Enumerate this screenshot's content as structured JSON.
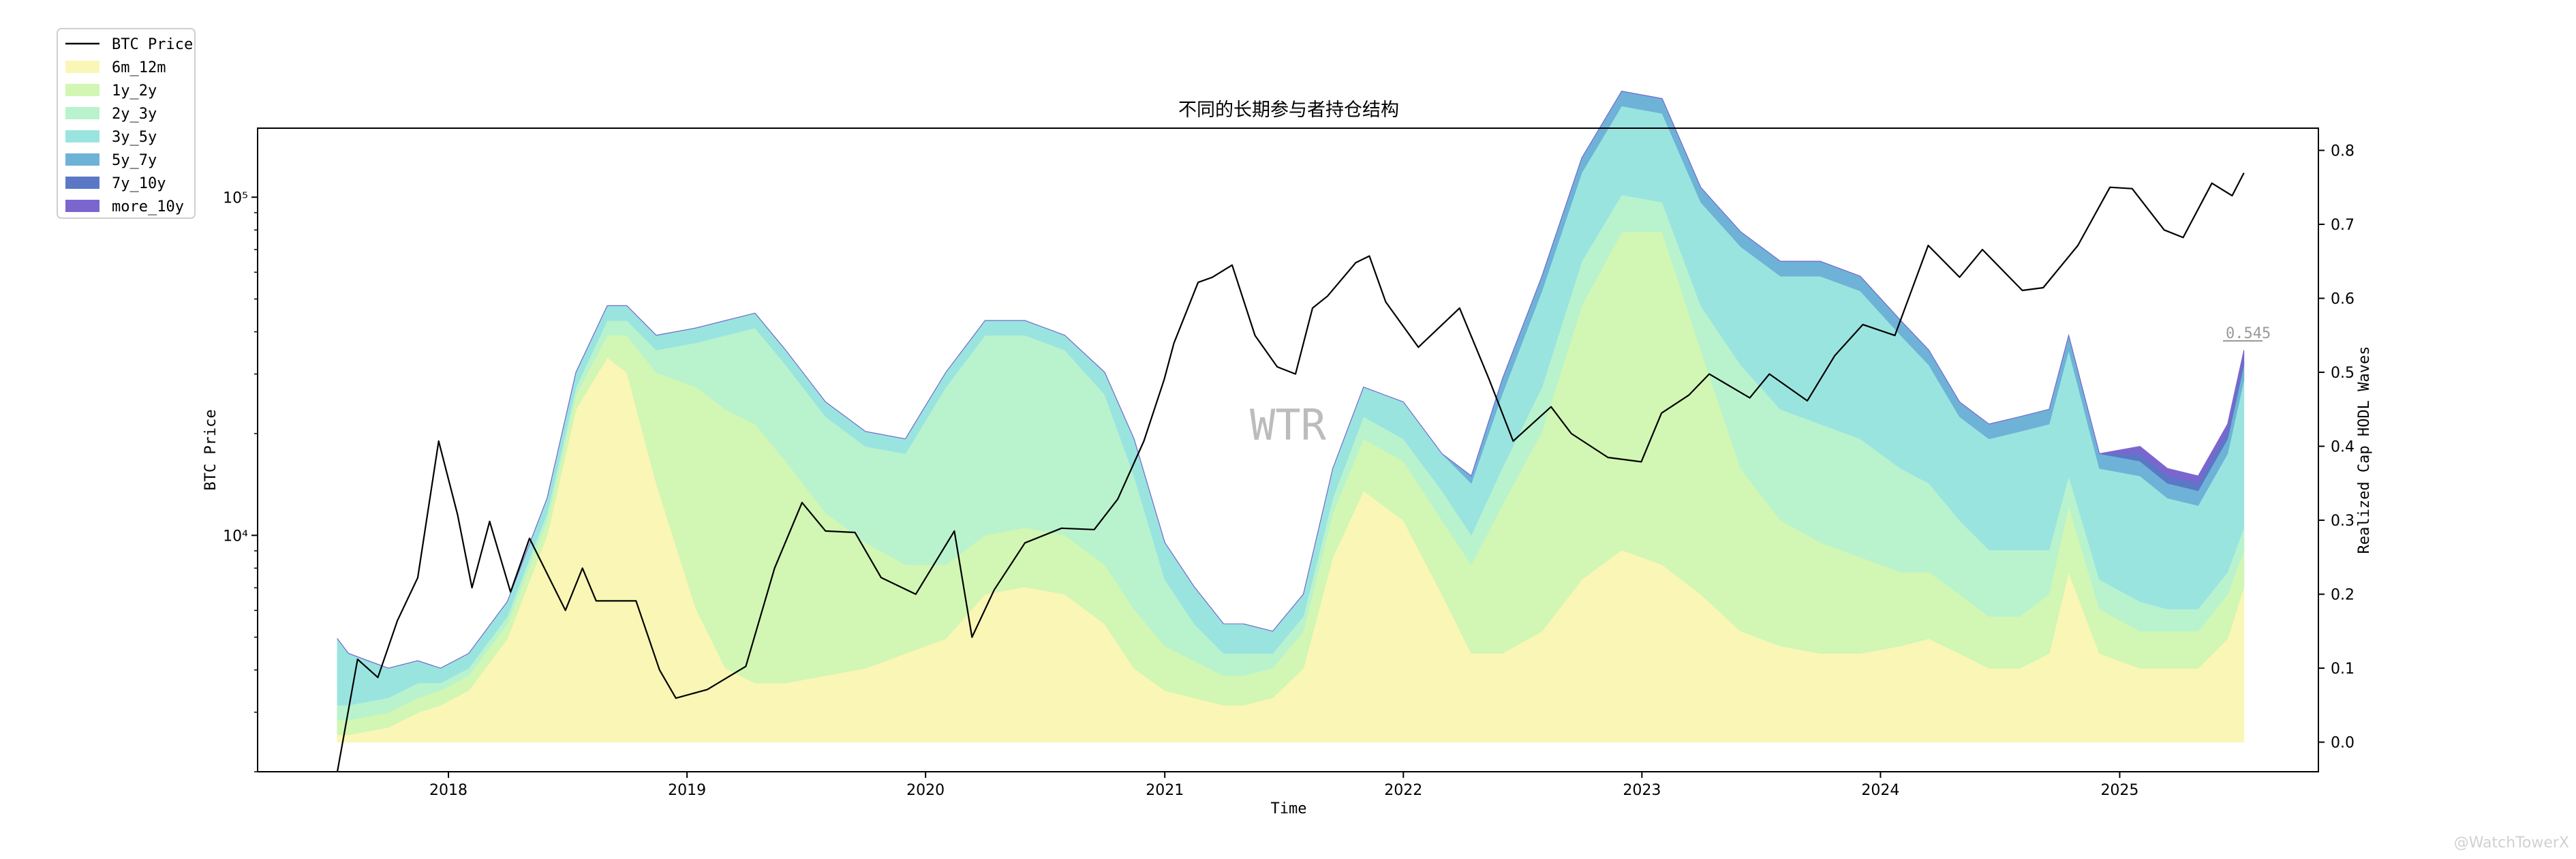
{
  "chart_data": {
    "type": "area",
    "title": "不同的长期参与者持仓结构",
    "xlabel": "Time",
    "ylabel_left": "BTC Price",
    "ylabel_right": "Realized Cap HODL Waves",
    "watermark": "WTR",
    "footer_mark": "@WatchTowerX",
    "end_annotation": "0.545",
    "y_left_scale": "log",
    "y_left_ticks": [
      "10⁴",
      "10⁵"
    ],
    "y_left_tick_values": [
      10000,
      100000
    ],
    "y_left_range": [
      2000,
      160000
    ],
    "y_right_ticks": [
      "0.0",
      "0.1",
      "0.2",
      "0.3",
      "0.4",
      "0.5",
      "0.6",
      "0.7",
      "0.8"
    ],
    "y_right_range": [
      -0.04,
      0.83
    ],
    "x_ticks": [
      "2018",
      "2019",
      "2020",
      "2021",
      "2022",
      "2023",
      "2024",
      "2025"
    ],
    "x_range": [
      "2017-03-15",
      "2025-11-01"
    ],
    "legend_position": "top-left outside",
    "legend": [
      "BTC Price",
      "6m_12m",
      "1y_2y",
      "2y_3y",
      "3y_5y",
      "5y_7y",
      "7y_10y",
      "more_10y"
    ],
    "colors": {
      "btc_price": "#000000",
      "6m_12m": "#f9f6b6",
      "1y_2y": "#d2f6b4",
      "2y_3y": "#b9f3cd",
      "3y_5y": "#9ae4e0",
      "5y_7y": "#6fb2d7",
      "7y_10y": "#5a78c6",
      "more_10y": "#7b66cf"
    },
    "dates": [
      "2017-07-15",
      "2017-08-01",
      "2017-10-01",
      "2017-11-15",
      "2017-12-20",
      "2018-02-01",
      "2018-04-01",
      "2018-06-01",
      "2018-07-15",
      "2018-09-01",
      "2018-10-01",
      "2018-11-15",
      "2019-01-15",
      "2019-03-01",
      "2019-04-15",
      "2019-06-01",
      "2019-08-01",
      "2019-10-01",
      "2019-12-01",
      "2020-02-01",
      "2020-04-01",
      "2020-06-01",
      "2020-08-01",
      "2020-10-01",
      "2020-11-15",
      "2021-01-01",
      "2021-02-15",
      "2021-04-01",
      "2021-05-01",
      "2021-06-15",
      "2021-08-01",
      "2021-09-15",
      "2021-11-01",
      "2022-01-01",
      "2022-03-01",
      "2022-04-15",
      "2022-06-01",
      "2022-08-01",
      "2022-10-01",
      "2022-12-01",
      "2023-02-01",
      "2023-04-01",
      "2023-06-01",
      "2023-08-01",
      "2023-10-01",
      "2023-12-01",
      "2024-02-01",
      "2024-03-15",
      "2024-05-01",
      "2024-06-15",
      "2024-08-01",
      "2024-09-15",
      "2024-10-15",
      "2024-12-01",
      "2025-02-01",
      "2025-03-15",
      "2025-05-01",
      "2025-06-15",
      "2025-07-10"
    ],
    "series": [
      {
        "name": "6m_12m",
        "values": [
          0.01,
          0.01,
          0.02,
          0.04,
          0.05,
          0.07,
          0.14,
          0.28,
          0.45,
          0.52,
          0.5,
          0.35,
          0.18,
          0.1,
          0.08,
          0.08,
          0.09,
          0.1,
          0.12,
          0.14,
          0.2,
          0.21,
          0.2,
          0.16,
          0.1,
          0.07,
          0.06,
          0.05,
          0.05,
          0.06,
          0.1,
          0.25,
          0.34,
          0.3,
          0.2,
          0.12,
          0.12,
          0.15,
          0.22,
          0.26,
          0.24,
          0.2,
          0.15,
          0.13,
          0.12,
          0.12,
          0.13,
          0.14,
          0.12,
          0.1,
          0.1,
          0.12,
          0.23,
          0.12,
          0.1,
          0.1,
          0.1,
          0.14,
          0.21
        ]
      },
      {
        "name": "1y_2y",
        "values": [
          0.02,
          0.02,
          0.02,
          0.02,
          0.02,
          0.02,
          0.02,
          0.02,
          0.02,
          0.03,
          0.05,
          0.15,
          0.3,
          0.35,
          0.35,
          0.3,
          0.22,
          0.17,
          0.12,
          0.1,
          0.08,
          0.08,
          0.08,
          0.08,
          0.08,
          0.06,
          0.05,
          0.04,
          0.04,
          0.04,
          0.05,
          0.06,
          0.07,
          0.08,
          0.1,
          0.12,
          0.2,
          0.27,
          0.37,
          0.43,
          0.45,
          0.33,
          0.22,
          0.17,
          0.15,
          0.13,
          0.1,
          0.09,
          0.08,
          0.07,
          0.07,
          0.08,
          0.09,
          0.06,
          0.05,
          0.05,
          0.05,
          0.06,
          0.05
        ]
      },
      {
        "name": "2y_3y",
        "values": [
          0.02,
          0.02,
          0.02,
          0.02,
          0.01,
          0.01,
          0.01,
          0.01,
          0.01,
          0.02,
          0.02,
          0.03,
          0.06,
          0.1,
          0.13,
          0.13,
          0.13,
          0.13,
          0.15,
          0.24,
          0.27,
          0.26,
          0.25,
          0.23,
          0.18,
          0.09,
          0.05,
          0.03,
          0.03,
          0.02,
          0.02,
          0.02,
          0.03,
          0.03,
          0.04,
          0.04,
          0.05,
          0.06,
          0.06,
          0.05,
          0.04,
          0.06,
          0.14,
          0.15,
          0.16,
          0.16,
          0.14,
          0.12,
          0.1,
          0.09,
          0.09,
          0.06,
          0.04,
          0.04,
          0.04,
          0.03,
          0.03,
          0.03,
          0.03
        ]
      },
      {
        "name": "3y_5y",
        "values": [
          0.09,
          0.07,
          0.04,
          0.03,
          0.02,
          0.02,
          0.02,
          0.02,
          0.02,
          0.02,
          0.02,
          0.02,
          0.02,
          0.02,
          0.02,
          0.02,
          0.02,
          0.02,
          0.02,
          0.02,
          0.02,
          0.02,
          0.02,
          0.03,
          0.05,
          0.05,
          0.05,
          0.04,
          0.04,
          0.03,
          0.03,
          0.04,
          0.04,
          0.05,
          0.05,
          0.07,
          0.1,
          0.13,
          0.12,
          0.12,
          0.12,
          0.14,
          0.16,
          0.18,
          0.2,
          0.2,
          0.18,
          0.16,
          0.14,
          0.15,
          0.16,
          0.17,
          0.17,
          0.15,
          0.17,
          0.15,
          0.14,
          0.16,
          0.2
        ]
      },
      {
        "name": "5y_7y",
        "values": [
          0.0,
          0.0,
          0.0,
          0.0,
          0.0,
          0.0,
          0.0,
          0.0,
          0.0,
          0.0,
          0.0,
          0.0,
          0.0,
          0.0,
          0.0,
          0.0,
          0.0,
          0.0,
          0.0,
          0.0,
          0.0,
          0.0,
          0.0,
          0.0,
          0.0,
          0.0,
          0.0,
          0.0,
          0.0,
          0.0,
          0.0,
          0.0,
          0.0,
          0.0,
          0.0,
          0.01,
          0.02,
          0.02,
          0.02,
          0.02,
          0.02,
          0.02,
          0.02,
          0.02,
          0.02,
          0.02,
          0.02,
          0.02,
          0.02,
          0.02,
          0.02,
          0.02,
          0.02,
          0.02,
          0.02,
          0.02,
          0.02,
          0.02,
          0.02
        ]
      },
      {
        "name": "7y_10y",
        "values": [
          0.0,
          0.0,
          0.0,
          0.0,
          0.0,
          0.0,
          0.0,
          0.0,
          0.0,
          0.0,
          0.0,
          0.0,
          0.0,
          0.0,
          0.0,
          0.0,
          0.0,
          0.0,
          0.0,
          0.0,
          0.0,
          0.0,
          0.0,
          0.0,
          0.0,
          0.0,
          0.0,
          0.0,
          0.0,
          0.0,
          0.0,
          0.0,
          0.0,
          0.0,
          0.0,
          0.0,
          0.0,
          0.0,
          0.0,
          0.0,
          0.0,
          0.0,
          0.0,
          0.0,
          0.0,
          0.0,
          0.0,
          0.0,
          0.0,
          0.0,
          0.0,
          0.0,
          0.0,
          0.0,
          0.01,
          0.01,
          0.01,
          0.01,
          0.01
        ]
      },
      {
        "name": "more_10y",
        "values": [
          0.0,
          0.0,
          0.0,
          0.0,
          0.0,
          0.0,
          0.0,
          0.0,
          0.0,
          0.0,
          0.0,
          0.0,
          0.0,
          0.0,
          0.0,
          0.0,
          0.0,
          0.0,
          0.0,
          0.0,
          0.0,
          0.0,
          0.0,
          0.0,
          0.0,
          0.0,
          0.0,
          0.0,
          0.0,
          0.0,
          0.0,
          0.0,
          0.0,
          0.0,
          0.0,
          0.0,
          0.0,
          0.0,
          0.0,
          0.0,
          0.0,
          0.0,
          0.0,
          0.0,
          0.0,
          0.0,
          0.0,
          0.0,
          0.0,
          0.0,
          0.0,
          0.0,
          0.0,
          0.0,
          0.01,
          0.01,
          0.01,
          0.01,
          0.01
        ]
      }
    ],
    "btc_price": {
      "dates": [
        "2017-07-15",
        "2017-08-15",
        "2017-09-15",
        "2017-10-15",
        "2017-11-15",
        "2017-12-17",
        "2018-01-15",
        "2018-02-06",
        "2018-03-05",
        "2018-04-06",
        "2018-05-05",
        "2018-06-29",
        "2018-07-25",
        "2018-08-15",
        "2018-10-15",
        "2018-11-20",
        "2018-12-15",
        "2019-02-01",
        "2019-04-01",
        "2019-05-15",
        "2019-06-26",
        "2019-08-01",
        "2019-09-15",
        "2019-10-25",
        "2019-12-17",
        "2020-02-14",
        "2020-03-12",
        "2020-04-15",
        "2020-06-01",
        "2020-07-27",
        "2020-09-15",
        "2020-10-21",
        "2020-11-30",
        "2020-12-31",
        "2021-01-15",
        "2021-02-21",
        "2021-03-15",
        "2021-04-14",
        "2021-05-19",
        "2021-06-22",
        "2021-07-20",
        "2021-08-15",
        "2021-09-07",
        "2021-10-20",
        "2021-11-10",
        "2021-12-05",
        "2022-01-24",
        "2022-03-28",
        "2022-05-12",
        "2022-06-18",
        "2022-08-15",
        "2022-09-15",
        "2022-11-10",
        "2022-12-31",
        "2023-01-31",
        "2023-03-14",
        "2023-04-14",
        "2023-06-15",
        "2023-07-15",
        "2023-09-11",
        "2023-10-23",
        "2023-12-05",
        "2024-01-23",
        "2024-03-14",
        "2024-05-01",
        "2024-06-05",
        "2024-08-05",
        "2024-09-06",
        "2024-10-29",
        "2024-12-17",
        "2025-01-20",
        "2025-03-10",
        "2025-04-08",
        "2025-05-22",
        "2025-06-22",
        "2025-07-10"
      ],
      "values": [
        2000,
        4300,
        3800,
        5600,
        7500,
        19000,
        11500,
        7000,
        11000,
        6800,
        9800,
        6000,
        8000,
        6400,
        6400,
        4000,
        3300,
        3500,
        4100,
        8000,
        12500,
        10300,
        10200,
        7500,
        6700,
        10300,
        5000,
        6900,
        9500,
        10500,
        10400,
        12800,
        19000,
        28900,
        37000,
        56000,
        58000,
        63000,
        39000,
        31500,
        30000,
        47000,
        51000,
        64000,
        67000,
        49000,
        36000,
        47000,
        29000,
        19000,
        24000,
        20000,
        17000,
        16500,
        23000,
        26000,
        30000,
        25500,
        30000,
        25000,
        34000,
        42000,
        39000,
        72000,
        58000,
        70000,
        53000,
        54000,
        72000,
        107000,
        106000,
        80000,
        76000,
        110000,
        101000,
        118000
      ]
    }
  }
}
